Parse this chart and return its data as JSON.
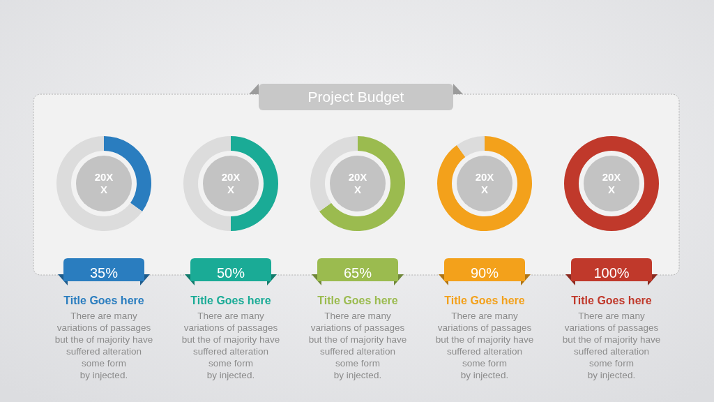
{
  "chart_data": [
    {
      "type": "other",
      "title": "Project Budget"
    },
    {
      "type": "donut",
      "title": "Title Goes here",
      "categories": [
        null,
        null
      ],
      "values": [
        35,
        65
      ],
      "colors": [
        "#2a7dbf",
        "#dcdcdc"
      ],
      "annotations": [
        "20X\nX",
        "35%",
        "There are many\nvariations of passages\nbut the of majority have\nsuffered alteration\nsome form\nby injected."
      ]
    },
    {
      "type": "donut",
      "title": "Title Goes here",
      "categories": [
        null,
        null
      ],
      "values": [
        50,
        50
      ],
      "colors": [
        "#1aab96",
        "#dcdcdc"
      ],
      "annotations": [
        "20X\nX",
        "50%",
        "There are many\nvariations of passages\nbut the of majority have\nsuffered alteration\nsome form\nby injected."
      ]
    },
    {
      "type": "donut",
      "title": "Title Goes here",
      "categories": [
        null,
        null
      ],
      "values": [
        65,
        35
      ],
      "colors": [
        "#9bbb4f",
        "#dcdcdc"
      ],
      "annotations": [
        "20X\nX",
        "65%",
        "There are many\nvariations of passages\nbut the of majority have\nsuffered alteration\nsome form\nby injected."
      ]
    },
    {
      "type": "donut",
      "title": "Title Goes here",
      "categories": [
        null,
        null
      ],
      "values": [
        90,
        10
      ],
      "colors": [
        "#f3a11b",
        "#dcdcdc"
      ],
      "annotations": [
        "20X\nX",
        "90%",
        "There are many\nvariations of passages\nbut the of majority have\nsuffered alteration\nsome form\nby injected."
      ]
    },
    {
      "type": "donut",
      "title": "Title Goes here",
      "categories": [
        null
      ],
      "values": [
        100
      ],
      "colors": [
        "#c0392b"
      ],
      "annotations": [
        "20X\nX",
        "100%",
        "There are many\nvariations of passages\nbut the of majority have\nsuffered alteration\nsome form\nby injected."
      ]
    }
  ]
}
